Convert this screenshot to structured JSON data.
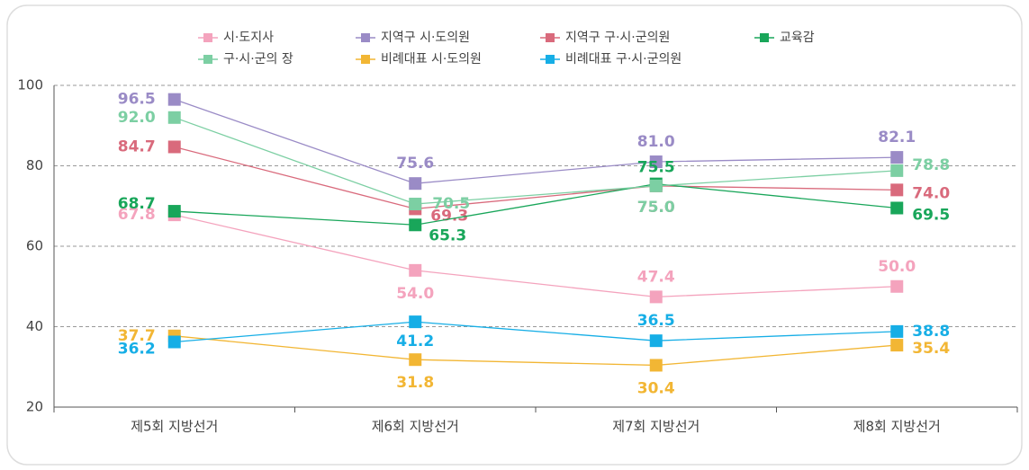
{
  "chart_data": {
    "type": "line",
    "categories": [
      "제5회 지방선거",
      "제6회 지방선거",
      "제7회 지방선거",
      "제8회 지방선거"
    ],
    "ylim": [
      20,
      100
    ],
    "yticks": [
      20,
      40,
      60,
      80,
      100
    ],
    "grid": true,
    "series": [
      {
        "name": "시·도지사",
        "color": "#f4a3bd",
        "values": [
          67.8,
          54.0,
          47.4,
          50.0
        ],
        "value_labels": [
          "67.8",
          "54.0",
          "47.4",
          "50.0"
        ]
      },
      {
        "name": "지역구 시·도의원",
        "color": "#9a8bc6",
        "values": [
          96.5,
          75.6,
          81.0,
          82.1
        ],
        "value_labels": [
          "96.5",
          "75.6",
          "81.0",
          "82.1"
        ]
      },
      {
        "name": "지역구 구·시·군의원",
        "color": "#d96a7c",
        "values": [
          84.7,
          69.3,
          75.0,
          74.0
        ],
        "value_labels": [
          "84.7",
          "69.3",
          "75.0",
          "74.0"
        ]
      },
      {
        "name": "교육감",
        "color": "#19a65a",
        "values": [
          68.7,
          65.3,
          75.5,
          69.5
        ],
        "value_labels": [
          "68.7",
          "65.3",
          "75.5",
          "69.5"
        ]
      },
      {
        "name": "구·시·군의 장",
        "color": "#7ccfa3",
        "values": [
          92.0,
          70.5,
          75.0,
          78.8
        ],
        "value_labels": [
          "92.0",
          "70.5",
          "75.0",
          "78.8"
        ]
      },
      {
        "name": "비례대표 시·도의원",
        "color": "#f2b634",
        "values": [
          37.7,
          31.8,
          30.4,
          35.4
        ],
        "value_labels": [
          "37.7",
          "31.8",
          "30.4",
          "35.4"
        ]
      },
      {
        "name": "비례대표 구·시·군의원",
        "color": "#16aee6",
        "values": [
          36.2,
          41.2,
          36.5,
          38.8
        ],
        "value_labels": [
          "36.2",
          "41.2",
          "36.5",
          "38.8"
        ]
      }
    ]
  }
}
